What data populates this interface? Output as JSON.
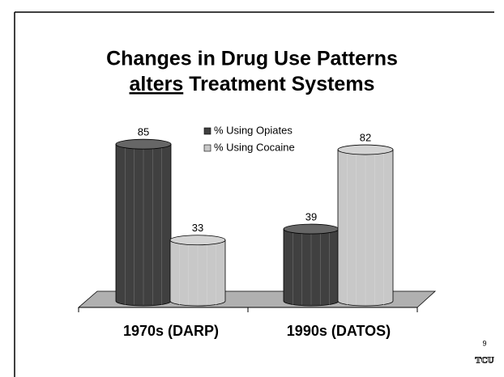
{
  "chart_data": {
    "type": "bar",
    "title": [
      "Changes in Drug Use Patterns",
      "alters",
      "Treatment Systems"
    ],
    "categories": [
      "1970s (DARP)",
      "1990s (DATOS)"
    ],
    "series": [
      {
        "name": "% Using Opiates",
        "color": "#404040",
        "values": [
          85,
          39
        ]
      },
      {
        "name": "% Using Cocaine",
        "color": "#c8c8c8",
        "values": [
          33,
          82
        ]
      }
    ],
    "ylim": [
      0,
      100
    ],
    "page_number": "9",
    "logo": "TCU"
  }
}
